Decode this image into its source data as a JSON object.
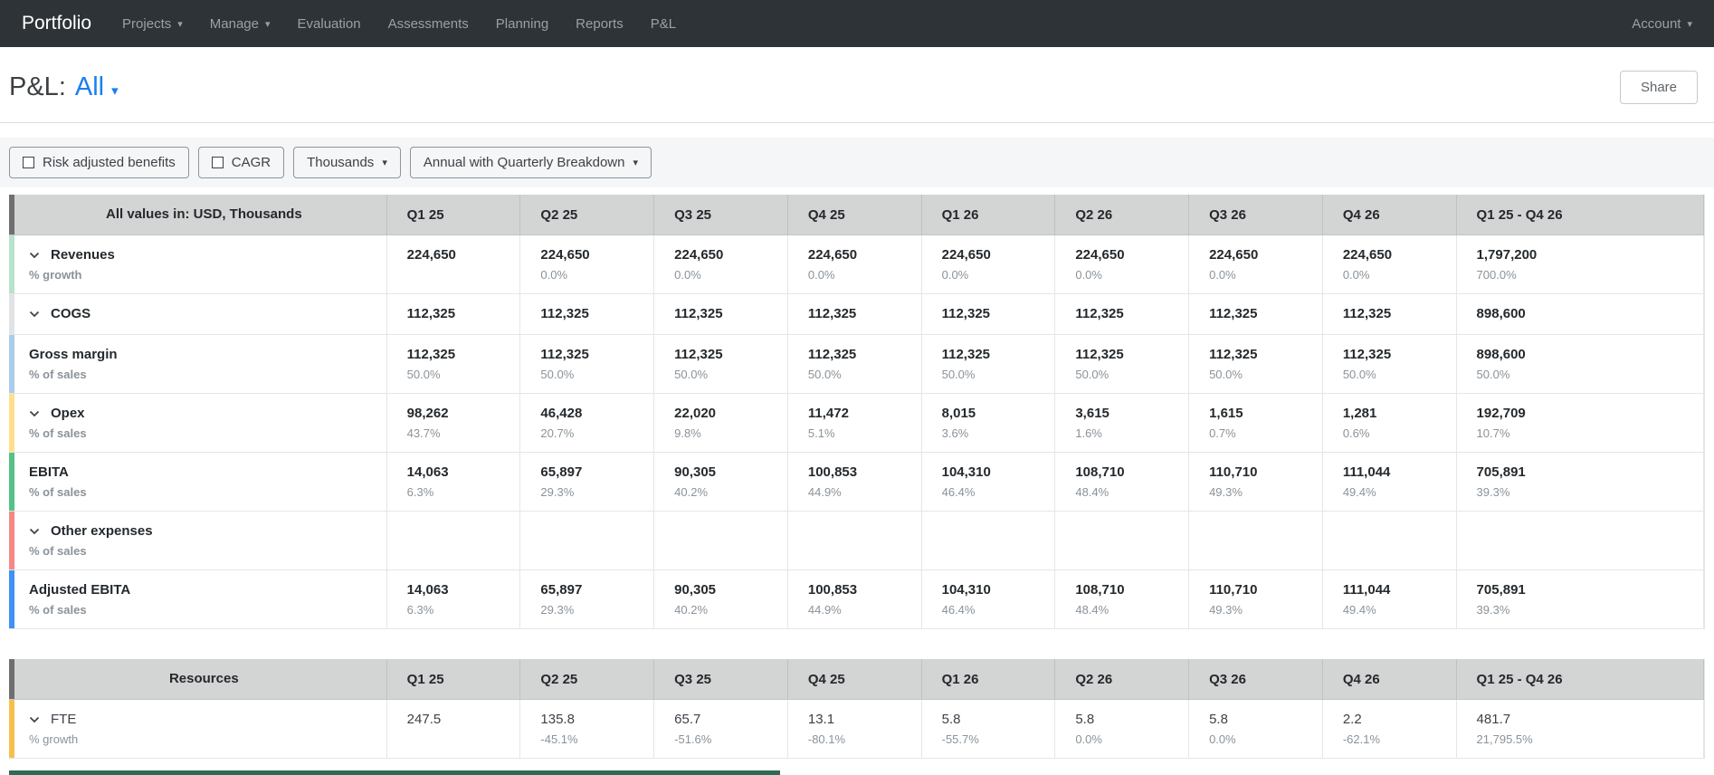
{
  "navbar": {
    "brand": "Portfolio",
    "items": [
      {
        "label": "Projects",
        "caret": true
      },
      {
        "label": "Manage",
        "caret": true
      },
      {
        "label": "Evaluation",
        "caret": false
      },
      {
        "label": "Assessments",
        "caret": false
      },
      {
        "label": "Planning",
        "caret": false
      },
      {
        "label": "Reports",
        "caret": false
      },
      {
        "label": "P&L",
        "caret": false
      }
    ],
    "account_label": "Account"
  },
  "header": {
    "title_prefix": "P&L:",
    "selection": "All",
    "share_label": "Share",
    "selection_color": "#1a7ff0"
  },
  "toolbar": {
    "checkbox_buttons": [
      {
        "label": "Risk adjusted benefits",
        "checked": false
      },
      {
        "label": "CAGR",
        "checked": false
      }
    ],
    "dropdown_buttons": [
      {
        "label": "Thousands"
      },
      {
        "label": "Annual with Quarterly Breakdown"
      }
    ]
  },
  "pnl_table": {
    "corner_label": "All values in: USD, Thousands",
    "corner_accent": "#6f6f6f",
    "columns": [
      "Q1 25",
      "Q2 25",
      "Q3 25",
      "Q4 25",
      "Q1 26",
      "Q2 26",
      "Q3 26",
      "Q4 26",
      "Q1 25 - Q4 26"
    ],
    "rows": [
      {
        "label": "Revenues",
        "sublabel": "% growth",
        "chevron": true,
        "accent": "#b9e2cb",
        "light": false,
        "values": [
          "224,650",
          "224,650",
          "224,650",
          "224,650",
          "224,650",
          "224,650",
          "224,650",
          "224,650",
          "1,797,200"
        ],
        "subvalues": [
          "",
          "0.0%",
          "0.0%",
          "0.0%",
          "0.0%",
          "0.0%",
          "0.0%",
          "0.0%",
          "700.0%"
        ]
      },
      {
        "label": "COGS",
        "sublabel": "",
        "chevron": true,
        "accent": "#e1e3e4",
        "light": false,
        "values": [
          "112,325",
          "112,325",
          "112,325",
          "112,325",
          "112,325",
          "112,325",
          "112,325",
          "112,325",
          "898,600"
        ],
        "subvalues": [
          "",
          "",
          "",
          "",
          "",
          "",
          "",
          "",
          ""
        ]
      },
      {
        "label": "Gross margin",
        "sublabel": "% of sales",
        "chevron": false,
        "accent": "#abccea",
        "light": false,
        "values": [
          "112,325",
          "112,325",
          "112,325",
          "112,325",
          "112,325",
          "112,325",
          "112,325",
          "112,325",
          "898,600"
        ],
        "subvalues": [
          "50.0%",
          "50.0%",
          "50.0%",
          "50.0%",
          "50.0%",
          "50.0%",
          "50.0%",
          "50.0%",
          "50.0%"
        ]
      },
      {
        "label": "Opex",
        "sublabel": "% of sales",
        "chevron": true,
        "accent": "#ffdf8e",
        "light": false,
        "values": [
          "98,262",
          "46,428",
          "22,020",
          "11,472",
          "8,015",
          "3,615",
          "1,615",
          "1,281",
          "192,709"
        ],
        "subvalues": [
          "43.7%",
          "20.7%",
          "9.8%",
          "5.1%",
          "3.6%",
          "1.6%",
          "0.7%",
          "0.6%",
          "10.7%"
        ]
      },
      {
        "label": "EBITA",
        "sublabel": "% of sales",
        "chevron": false,
        "accent": "#54c287",
        "light": false,
        "values": [
          "14,063",
          "65,897",
          "90,305",
          "100,853",
          "104,310",
          "108,710",
          "110,710",
          "111,044",
          "705,891"
        ],
        "subvalues": [
          "6.3%",
          "29.3%",
          "40.2%",
          "44.9%",
          "46.4%",
          "48.4%",
          "49.3%",
          "49.4%",
          "39.3%"
        ]
      },
      {
        "label": "Other expenses",
        "sublabel": "% of sales",
        "chevron": true,
        "accent": "#f58784",
        "light": false,
        "values": [
          "",
          "",
          "",
          "",
          "",
          "",
          "",
          "",
          ""
        ],
        "subvalues": [
          "",
          "",
          "",
          "",
          "",
          "",
          "",
          "",
          ""
        ]
      },
      {
        "label": "Adjusted EBITA",
        "sublabel": "% of sales",
        "chevron": false,
        "accent": "#4190f5",
        "light": false,
        "values": [
          "14,063",
          "65,897",
          "90,305",
          "100,853",
          "104,310",
          "108,710",
          "110,710",
          "111,044",
          "705,891"
        ],
        "subvalues": [
          "6.3%",
          "29.3%",
          "40.2%",
          "44.9%",
          "46.4%",
          "48.4%",
          "49.3%",
          "49.4%",
          "39.3%"
        ]
      }
    ]
  },
  "resources_table": {
    "corner_label": "Resources",
    "corner_accent": "#6f6f6f",
    "columns": [
      "Q1 25",
      "Q2 25",
      "Q3 25",
      "Q4 25",
      "Q1 26",
      "Q2 26",
      "Q3 26",
      "Q4 26",
      "Q1 25 - Q4 26"
    ],
    "rows": [
      {
        "label": "FTE",
        "sublabel": "% growth",
        "chevron": true,
        "accent": "#f6c04c",
        "light": true,
        "values": [
          "247.5",
          "135.8",
          "65.7",
          "13.1",
          "5.8",
          "5.8",
          "5.8",
          "2.2",
          "481.7"
        ],
        "subvalues": [
          "",
          "-45.1%",
          "-51.6%",
          "-80.1%",
          "-55.7%",
          "0.0%",
          "0.0%",
          "-62.1%",
          "21,795.5%"
        ]
      }
    ]
  }
}
